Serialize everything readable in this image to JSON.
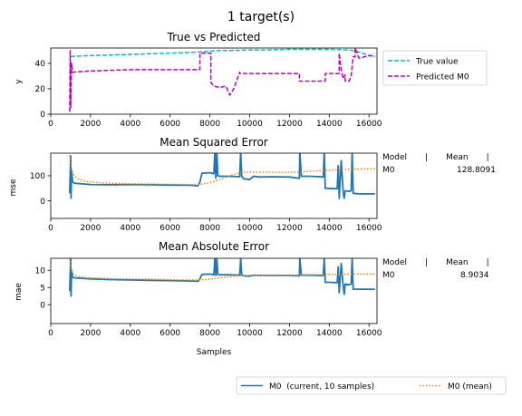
{
  "suptitle": "1 target(s)",
  "colors": {
    "true_value": "#00bfbf",
    "predicted": "#bf00bf",
    "current": "#1f77b4",
    "mean": "#ff7f0e"
  },
  "bottom_legend": {
    "current": "M0  (current, 10 samples)",
    "mean": "M0 (mean)"
  },
  "chart_data": [
    {
      "type": "line",
      "title": "True vs Predicted",
      "xlabel": "",
      "ylabel": "y",
      "xlim": [
        0,
        16400
      ],
      "ylim": [
        0,
        52
      ],
      "xticks": [
        0,
        2000,
        4000,
        6000,
        8000,
        10000,
        12000,
        14000,
        16000
      ],
      "yticks": [
        0,
        20,
        40
      ],
      "legend": {
        "position": "outside-right",
        "entries": [
          "True value",
          "Predicted M0"
        ]
      },
      "series": [
        {
          "name": "True value",
          "style": "dashed",
          "x": [
            1000,
            1100,
            2000,
            3000,
            4000,
            5000,
            6000,
            7000,
            7500,
            8000,
            8500,
            9000,
            10000,
            11000,
            12000,
            12500,
            13000,
            14000,
            15000,
            15500,
            16000,
            16300
          ],
          "y": [
            45,
            45.5,
            46,
            46.5,
            47,
            47.5,
            48,
            48.5,
            49,
            49.5,
            50,
            50,
            50.5,
            50.5,
            51,
            51,
            51,
            51,
            50.5,
            49,
            46,
            45
          ]
        },
        {
          "name": "Predicted M0",
          "style": "dashed",
          "x": [
            950,
            980,
            1000,
            1050,
            1100,
            2000,
            4000,
            6000,
            7500,
            7500,
            8050,
            8050,
            8200,
            8500,
            8800,
            9000,
            9200,
            9500,
            9500,
            12500,
            12500,
            13800,
            13800,
            14500,
            14500,
            14600,
            14700,
            14800,
            14800,
            15000,
            15100,
            15200,
            15300,
            15300,
            15500,
            16000,
            16300
          ],
          "y": [
            2,
            50,
            5,
            40,
            33,
            34,
            35,
            35,
            35,
            48,
            48,
            25,
            22,
            21,
            22,
            15,
            20,
            33,
            32,
            32,
            26,
            26,
            32,
            32,
            48,
            35,
            28,
            31,
            26,
            26,
            30,
            45,
            45,
            52,
            44,
            46,
            46
          ]
        }
      ]
    },
    {
      "type": "line",
      "title": "Mean Squared Error",
      "xlabel": "",
      "ylabel": "mse",
      "xlim": [
        0,
        16400
      ],
      "ylim": [
        -70,
        190
      ],
      "xticks": [
        0,
        2000,
        4000,
        6000,
        8000,
        10000,
        12000,
        14000,
        16000
      ],
      "yticks": [
        0,
        100
      ],
      "side_table": {
        "header": "Model       |       Mean       |",
        "model": "M0",
        "value": "128.8091"
      },
      "series": [
        {
          "name": "M0  (current, 10 samples)",
          "style": "solid",
          "x": [
            950,
            1000,
            1020,
            1050,
            1100,
            1200,
            2000,
            3000,
            4000,
            5000,
            6000,
            7000,
            7400,
            7500,
            7600,
            8000,
            8200,
            8250,
            8300,
            8350,
            8400,
            8500,
            9000,
            9500,
            9550,
            9600,
            9700,
            10000,
            10200,
            10500,
            11000,
            12000,
            12500,
            12520,
            12600,
            13000,
            13500,
            13700,
            13750,
            13800,
            14000,
            14400,
            14450,
            14500,
            14600,
            14700,
            14750,
            14800,
            15000,
            15100,
            15150,
            15200,
            15500,
            16000,
            16300
          ],
          "y": [
            30,
            180,
            10,
            120,
            75,
            70,
            65,
            64,
            65,
            64,
            63,
            62,
            60,
            75,
            110,
            112,
            108,
            195,
            90,
            195,
            100,
            98,
            98,
            96,
            195,
            98,
            88,
            85,
            98,
            95,
            96,
            95,
            90,
            195,
            98,
            98,
            96,
            95,
            195,
            50,
            50,
            48,
            140,
            10,
            160,
            35,
            10,
            40,
            38,
            40,
            195,
            30,
            28,
            28,
            28
          ]
        },
        {
          "name": "M0 (mean)",
          "style": "dotted",
          "x": [
            950,
            1000,
            1100,
            1300,
            1600,
            2000,
            3000,
            4000,
            5000,
            6000,
            7000,
            7500,
            8000,
            8500,
            9000,
            9500,
            10000,
            11000,
            12000,
            12500,
            13000,
            14000,
            15000,
            16000,
            16300
          ],
          "y": [
            180,
            150,
            110,
            90,
            80,
            75,
            70,
            68,
            67,
            66,
            65,
            66,
            72,
            85,
            100,
            112,
            115,
            114,
            113,
            115,
            118,
            122,
            126,
            128,
            128
          ]
        }
      ]
    },
    {
      "type": "line",
      "title": "Mean Absolute Error",
      "xlabel": "Samples",
      "ylabel": "mae",
      "xlim": [
        0,
        16400
      ],
      "ylim": [
        -5.5,
        13.5
      ],
      "xticks": [
        0,
        2000,
        4000,
        6000,
        8000,
        10000,
        12000,
        14000,
        16000
      ],
      "yticks": [
        0,
        5,
        10
      ],
      "side_table": {
        "header": "Model       |       Mean       |",
        "model": "M0",
        "value": "8.9034"
      },
      "series": [
        {
          "name": "M0  (current, 10 samples)",
          "style": "solid",
          "x": [
            950,
            1000,
            1020,
            1050,
            1100,
            1200,
            2000,
            3000,
            4000,
            5000,
            6000,
            7000,
            7400,
            7500,
            7600,
            8000,
            8200,
            8250,
            8300,
            8350,
            8400,
            8500,
            9000,
            9500,
            9550,
            9600,
            9700,
            10000,
            10200,
            10500,
            11000,
            12000,
            12500,
            12520,
            12600,
            13000,
            13500,
            13700,
            13750,
            13800,
            14000,
            14400,
            14450,
            14500,
            14600,
            14700,
            14750,
            14800,
            15000,
            15100,
            15150,
            15200,
            15500,
            16000,
            16300
          ],
          "y": [
            4,
            13.5,
            2.5,
            10,
            8,
            7.8,
            7.5,
            7.3,
            7.2,
            7.1,
            7.0,
            6.9,
            6.8,
            7.5,
            8.8,
            8.9,
            8.7,
            13.5,
            8.5,
            13.5,
            8.8,
            8.7,
            8.7,
            8.6,
            13.5,
            8.7,
            8.4,
            8.3,
            8.6,
            8.5,
            8.5,
            8.5,
            8.4,
            13.5,
            8.6,
            8.6,
            8.5,
            8.5,
            13.5,
            6.5,
            6.5,
            6.4,
            11,
            3.5,
            12,
            5.5,
            3.0,
            6.0,
            5.8,
            6.0,
            13.5,
            4.5,
            4.5,
            4.5,
            4.5
          ]
        },
        {
          "name": "M0 (mean)",
          "style": "dotted",
          "x": [
            950,
            1000,
            1100,
            1300,
            1600,
            2000,
            3000,
            4000,
            5000,
            6000,
            7000,
            7500,
            8000,
            8500,
            9000,
            9500,
            10000,
            11000,
            12000,
            12500,
            13000,
            14000,
            15000,
            16000,
            16300
          ],
          "y": [
            13.5,
            11,
            9,
            8.3,
            8.0,
            7.8,
            7.6,
            7.5,
            7.4,
            7.3,
            7.2,
            7.2,
            7.4,
            7.8,
            8.2,
            8.4,
            8.5,
            8.5,
            8.5,
            8.6,
            8.7,
            8.8,
            8.9,
            8.9,
            8.9
          ]
        }
      ]
    }
  ]
}
